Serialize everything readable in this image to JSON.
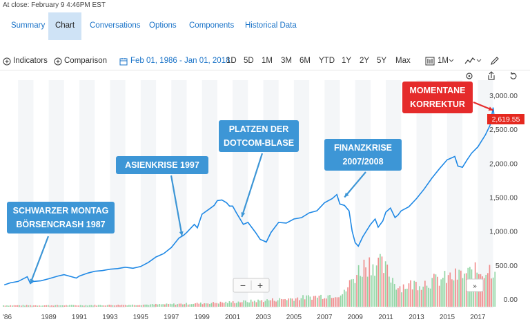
{
  "close_text": "At close: February 9 4:46PM EST",
  "tabs": [
    {
      "label": "Summary"
    },
    {
      "label": "Chart"
    },
    {
      "label": "Conversations"
    },
    {
      "label": "Options"
    },
    {
      "label": "Components"
    },
    {
      "label": "Historical Data"
    }
  ],
  "toolbar": {
    "indicators": "Indicators",
    "comparison": "Comparison",
    "date_range": "Feb 01, 1986 - Jan 01, 2018",
    "ranges": [
      "1D",
      "5D",
      "1M",
      "3M",
      "6M",
      "YTD",
      "1Y",
      "2Y",
      "5Y",
      "Max"
    ],
    "interval": "1M"
  },
  "colors": {
    "accent": "#1a73c8",
    "line": "#1e88e5",
    "callout": "#3d96d6",
    "callout_red": "#e52b2b",
    "vol_green": "#7fcf94",
    "vol_red": "#ef7b7b"
  },
  "chart_data": {
    "type": "line",
    "title": "",
    "xlabel": "",
    "ylabel": "",
    "ylim": [
      -200,
      3200
    ],
    "yticks": [
      "3,000.00",
      "2,500.00",
      "2,000.00",
      "1,500.00",
      "1,000.00",
      "500.00",
      "0.00"
    ],
    "ytick_values": [
      3000,
      2500,
      2000,
      1500,
      1000,
      500,
      0
    ],
    "xticks": [
      "'86",
      "1989",
      "1991",
      "1993",
      "1995",
      "1997",
      "1999",
      "2001",
      "2003",
      "2005",
      "2007",
      "2009",
      "2011",
      "2013",
      "2015",
      "2017"
    ],
    "xtick_values": [
      1986.0,
      1989,
      1991,
      1993,
      1995,
      1997,
      1999,
      2001,
      2003,
      2005,
      2007,
      2009,
      2011,
      2013,
      2015,
      2017
    ],
    "last_price": "2,619.55",
    "series": [
      {
        "x": [
          1986.1,
          1986.5,
          1987.0,
          1987.6,
          1987.8,
          1988.0,
          1988.5,
          1989.0,
          1989.6,
          1990.0,
          1990.5,
          1990.8,
          1991.0,
          1991.5,
          1992.0,
          1992.5,
          1993.0,
          1993.5,
          1994.0,
          1994.5,
          1995.0,
          1995.5,
          1996.0,
          1996.5,
          1997.0,
          1997.5,
          1997.8,
          1998.0,
          1998.5,
          1998.7,
          1999.0,
          1999.5,
          1999.8,
          2000.0,
          2000.3,
          2000.6,
          2000.8,
          2001.0,
          2001.3,
          2001.7,
          2002.0,
          2002.5,
          2002.8,
          2003.0,
          2003.2,
          2003.5,
          2004.0,
          2004.5,
          2005.0,
          2005.5,
          2006.0,
          2006.5,
          2007.0,
          2007.5,
          2007.8,
          2008.0,
          2008.3,
          2008.6,
          2008.8,
          2009.0,
          2009.2,
          2009.5,
          2010.0,
          2010.3,
          2010.5,
          2010.8,
          2011.0,
          2011.3,
          2011.6,
          2011.8,
          2012.0,
          2012.5,
          2013.0,
          2013.5,
          2014.0,
          2014.5,
          2015.0,
          2015.5,
          2015.7,
          2016.0,
          2016.3,
          2016.6,
          2017.0,
          2017.5,
          2017.8,
          2018.0,
          2018.1
        ],
        "y": [
          210,
          240,
          260,
          330,
          230,
          260,
          270,
          300,
          340,
          360,
          330,
          310,
          340,
          380,
          410,
          420,
          440,
          450,
          470,
          455,
          480,
          540,
          620,
          670,
          760,
          900,
          940,
          980,
          1100,
          1050,
          1250,
          1330,
          1380,
          1450,
          1460,
          1420,
          1370,
          1370,
          1250,
          1100,
          1130,
          980,
          880,
          860,
          840,
          980,
          1130,
          1120,
          1180,
          1200,
          1270,
          1300,
          1420,
          1480,
          1540,
          1400,
          1380,
          1300,
          1000,
          830,
          780,
          920,
          1100,
          1180,
          1060,
          1150,
          1280,
          1340,
          1200,
          1240,
          1300,
          1360,
          1480,
          1620,
          1780,
          1920,
          2050,
          2100,
          1960,
          1940,
          2050,
          2150,
          2240,
          2420,
          2560,
          2820,
          2620
        ]
      }
    ],
    "annotations": [
      {
        "lines": [
          "SCHWARZER MONTAG",
          "BÖRSENCRASH 1987"
        ],
        "x": 1987.8,
        "y": 230
      },
      {
        "lines": [
          "ASIENKRISE 1997"
        ],
        "x": 1997.7,
        "y": 930
      },
      {
        "lines": [
          "PLATZEN DER",
          "DOTCOM-BLASE"
        ],
        "x": 2001.6,
        "y": 1210
      },
      {
        "lines": [
          "FINANZKRISE",
          "2007/2008"
        ],
        "x": 2008.3,
        "y": 1500
      },
      {
        "lines": [
          "MOMENTANE",
          "KORREKTUR"
        ],
        "x": 2018.0,
        "y": 2780
      }
    ]
  }
}
